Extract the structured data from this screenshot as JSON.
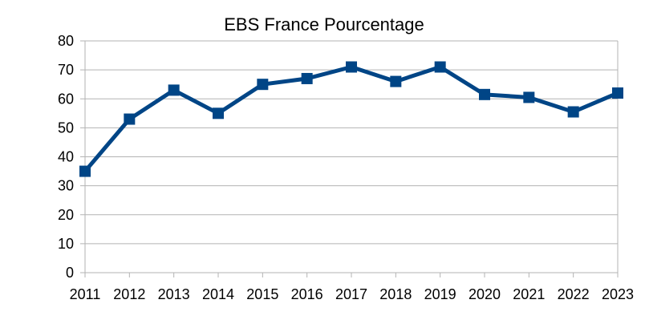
{
  "chart_data": {
    "type": "line",
    "title": "EBS France Pourcentage",
    "xlabel": "",
    "ylabel": "",
    "categories": [
      "2011",
      "2012",
      "2013",
      "2014",
      "2015",
      "2016",
      "2017",
      "2018",
      "2019",
      "2020",
      "2021",
      "2022",
      "2023"
    ],
    "series": [
      {
        "name": "EBS France Pourcentage",
        "values": [
          35,
          53,
          63,
          55,
          65,
          67,
          71,
          66,
          71,
          61.5,
          60.5,
          55.5,
          62
        ]
      }
    ],
    "ylim": [
      0,
      80
    ],
    "yticks": [
      0,
      10,
      20,
      30,
      40,
      50,
      60,
      70,
      80
    ],
    "grid": true,
    "legend": "none",
    "line_color": "#004586"
  }
}
